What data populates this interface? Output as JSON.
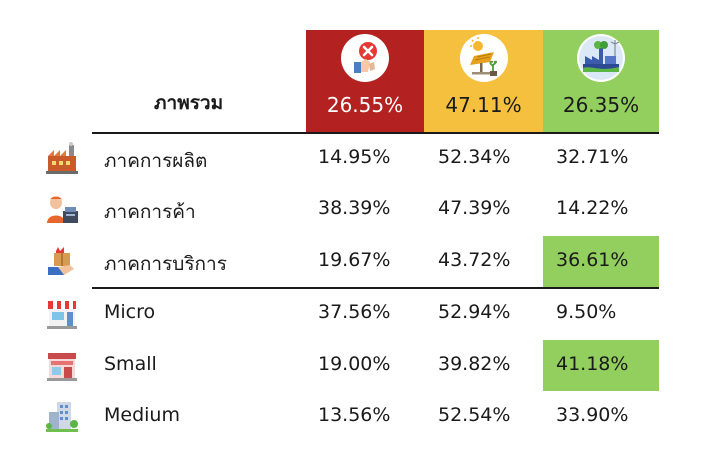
{
  "header": {
    "overall_label": "ภาพรวม",
    "columns": [
      {
        "value": "26.55%",
        "color": "#b42121",
        "icon": "hand-x-icon"
      },
      {
        "value": "47.11%",
        "color": "#f5c03e",
        "icon": "solar-panel-plant-icon"
      },
      {
        "value": "26.35%",
        "color": "#93cf5e",
        "icon": "green-factory-icon"
      }
    ]
  },
  "rows": [
    {
      "label": "ภาคการผลิต",
      "icon": "factory-icon",
      "values": [
        "14.95%",
        "52.34%",
        "32.71%"
      ]
    },
    {
      "label": "ภาคการค้า",
      "icon": "cashier-icon",
      "values": [
        "38.39%",
        "47.39%",
        "14.22%"
      ]
    },
    {
      "label": "ภาคการบริการ",
      "icon": "service-box-icon",
      "values": [
        "19.67%",
        "43.72%",
        "36.61%"
      ]
    },
    {
      "label": "Micro",
      "icon": "shop-icon",
      "values": [
        "37.56%",
        "52.94%",
        "9.50%"
      ]
    },
    {
      "label": "Small",
      "icon": "store-icon",
      "values": [
        "19.00%",
        "39.82%",
        "41.18%"
      ]
    },
    {
      "label": "Medium",
      "icon": "building-icon",
      "values": [
        "13.56%",
        "52.54%",
        "33.90%"
      ]
    }
  ],
  "highlight_color": "#93cf5e",
  "chart_data": {
    "type": "table",
    "columns": [
      "",
      "26.55%",
      "47.11%",
      "26.35%"
    ],
    "overall": [
      "26.55%",
      "47.11%",
      "26.35%"
    ],
    "row_labels": [
      "ภาคการผลิต",
      "ภาคการค้า",
      "ภาคการบริการ",
      "Micro",
      "Small",
      "Medium"
    ],
    "rows": [
      [
        14.95,
        52.34,
        32.71
      ],
      [
        38.39,
        47.39,
        14.22
      ],
      [
        19.67,
        43.72,
        36.61
      ],
      [
        37.56,
        52.94,
        9.5
      ],
      [
        19.0,
        39.82,
        41.18
      ],
      [
        13.56,
        52.54,
        33.9
      ]
    ],
    "highlighted_cells": [
      [
        2,
        2
      ],
      [
        4,
        2
      ]
    ]
  }
}
